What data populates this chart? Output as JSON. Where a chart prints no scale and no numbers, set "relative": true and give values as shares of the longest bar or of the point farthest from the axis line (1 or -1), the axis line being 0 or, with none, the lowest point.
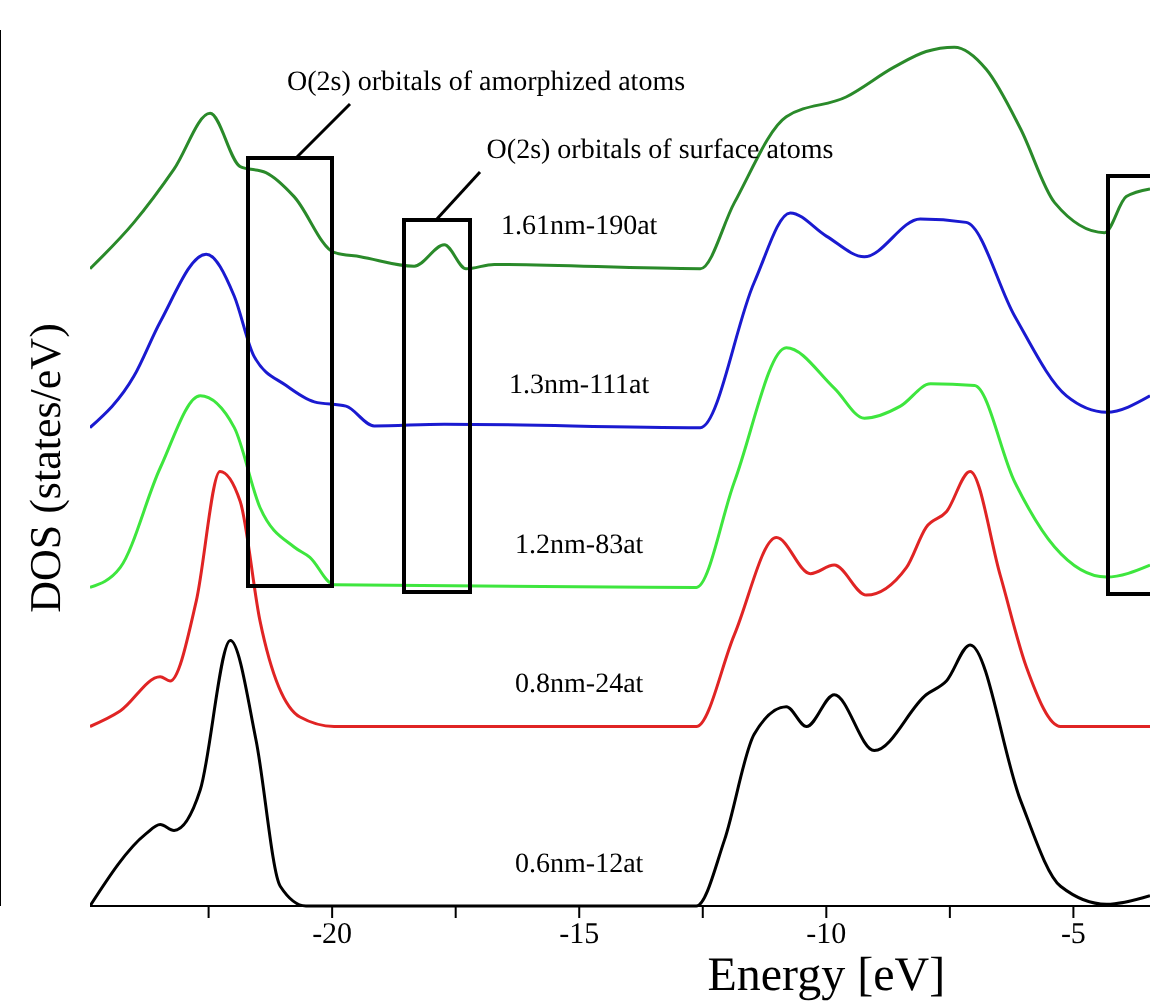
{
  "chart_data": {
    "type": "line",
    "relative": true,
    "xlabel": "Energy [eV]",
    "ylabel": "DOS (states/eV)",
    "xlim": [
      -24.9,
      -3.45
    ],
    "xticks": [
      {
        "value": -22.5,
        "label": null
      },
      -20,
      {
        "value": -17.5,
        "label": null
      },
      -15,
      {
        "value": -12.5,
        "label": null
      },
      -10,
      {
        "value": -7.5,
        "label": null
      },
      -5
    ],
    "tick_labels": "x",
    "annotations": [
      "O(2s) orbitals of amorphized atoms",
      "O(2s) orbitals of surface atoms"
    ],
    "series": [
      {
        "name": "1.61nm-190at",
        "color": "#2a8a2a",
        "x": [
          -24.9,
          -24.01,
          -23.2,
          -22.47,
          -21.86,
          -21.34,
          -20.77,
          -19.96,
          -19.43,
          -18.34,
          -17.73,
          -17.29,
          -16.72,
          -12.55,
          -11.86,
          -10.81,
          -9.6,
          -8.62,
          -7.98,
          -7.41,
          -6.76,
          -6.07,
          -5.38,
          -4.37,
          -3.93,
          -3.45
        ],
        "values": [
          0.742,
          0.796,
          0.858,
          0.923,
          0.861,
          0.854,
          0.826,
          0.761,
          0.756,
          0.745,
          0.77,
          0.742,
          0.747,
          0.742,
          0.819,
          0.919,
          0.942,
          0.977,
          0.995,
          1,
          0.974,
          0.905,
          0.819,
          0.784,
          0.826,
          0.835
        ]
      },
      {
        "name": "1.3nm-111at",
        "color": "#1a1ad0",
        "x": [
          -24.9,
          -24.01,
          -23.48,
          -22.55,
          -21.98,
          -21.58,
          -20.93,
          -20.36,
          -19.72,
          -19.15,
          -17.73,
          -12.55,
          -11.46,
          -10.73,
          -10.0,
          -9.23,
          -8.1,
          -7.17,
          -6.19,
          -5.14,
          -4.33,
          -3.45
        ],
        "values": [
          0.557,
          0.617,
          0.68,
          0.759,
          0.71,
          0.64,
          0.606,
          0.587,
          0.582,
          0.559,
          0.561,
          0.557,
          0.726,
          0.807,
          0.78,
          0.756,
          0.8,
          0.796,
          0.687,
          0.594,
          0.575,
          0.594
        ]
      },
      {
        "name": "1.2nm-83at",
        "color": "#3ee63e",
        "x": [
          -24.9,
          -24.29,
          -23.48,
          -22.67,
          -21.98,
          -21.46,
          -20.77,
          -20.45,
          -19.96,
          -12.63,
          -11.86,
          -10.81,
          -9.84,
          -9.23,
          -8.5,
          -7.89,
          -7.0,
          -6.19,
          -5.38,
          -4.33,
          -3.45
        ],
        "values": [
          0.371,
          0.394,
          0.51,
          0.594,
          0.557,
          0.464,
          0.418,
          0.406,
          0.374,
          0.371,
          0.494,
          0.65,
          0.603,
          0.568,
          0.582,
          0.608,
          0.606,
          0.494,
          0.418,
          0.383,
          0.397
        ]
      },
      {
        "name": "0.8nm-24at",
        "color": "#e02424",
        "x": [
          -24.9,
          -24.29,
          -23.48,
          -23.28,
          -22.75,
          -22.27,
          -21.86,
          -21.46,
          -20.65,
          -19.96,
          -12.63,
          -11.86,
          -11.01,
          -10.32,
          -9.84,
          -9.19,
          -8.38,
          -7.98,
          -7.57,
          -7.09,
          -6.48,
          -5.95,
          -5.26,
          -3.45
        ],
        "values": [
          0.209,
          0.227,
          0.267,
          0.262,
          0.355,
          0.506,
          0.471,
          0.332,
          0.22,
          0.209,
          0.209,
          0.316,
          0.429,
          0.387,
          0.397,
          0.362,
          0.394,
          0.441,
          0.459,
          0.506,
          0.385,
          0.278,
          0.209,
          0.209
        ]
      },
      {
        "name": "0.6nm-12at",
        "color": "#000000",
        "x": [
          -24.9,
          -23.77,
          -23.48,
          -23.2,
          -22.67,
          -22.06,
          -21.54,
          -21.05,
          -20.53,
          -12.63,
          -12.06,
          -11.46,
          -10.81,
          -10.4,
          -9.84,
          -9.03,
          -7.98,
          -7.57,
          -7.09,
          -6.07,
          -5.26,
          -4.33,
          -3.45
        ],
        "values": [
          0,
          0.084,
          0.095,
          0.088,
          0.135,
          0.309,
          0.193,
          0.023,
          0,
          0,
          0.077,
          0.2,
          0.232,
          0.209,
          0.246,
          0.181,
          0.246,
          0.262,
          0.304,
          0.123,
          0.023,
          0.002,
          0.012
        ]
      }
    ]
  }
}
